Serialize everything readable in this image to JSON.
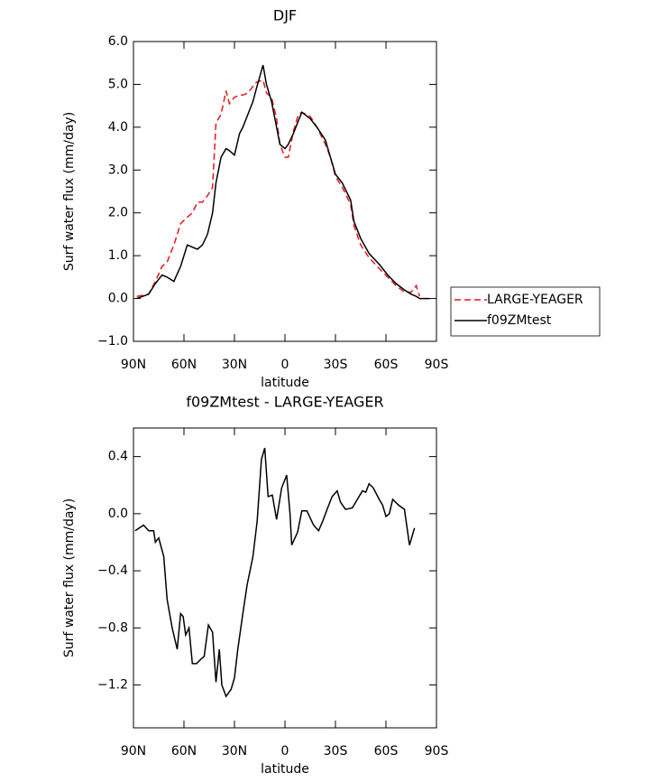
{
  "chart_data": [
    {
      "type": "line",
      "title": "DJF",
      "xlabel": "latitude",
      "ylabel": "Surf water flux (mm/day)",
      "x": [
        88,
        81,
        77,
        73,
        70,
        66,
        62,
        58,
        55,
        52,
        49,
        46,
        43,
        41,
        38,
        35,
        33,
        30,
        27,
        25,
        22,
        19,
        17,
        13,
        11,
        8,
        5,
        3,
        0,
        -2,
        -5,
        -8,
        -10,
        -15,
        -19,
        -24,
        -27,
        -30,
        -34,
        -39,
        -41,
        -45,
        -50,
        -56,
        -61,
        -66,
        -71,
        -75,
        -78,
        -80,
        -86
      ],
      "series": [
        {
          "name": "LARGE-YEAGER",
          "color": "#e8141c",
          "dash": "dashed",
          "values": [
            0.05,
            0.1,
            0.4,
            0.75,
            0.85,
            1.25,
            1.75,
            1.9,
            2.0,
            2.25,
            2.25,
            2.4,
            2.6,
            4.1,
            4.3,
            4.85,
            4.55,
            4.7,
            4.75,
            4.75,
            4.8,
            4.95,
            5.05,
            5.1,
            4.8,
            4.7,
            4.2,
            3.6,
            3.3,
            3.3,
            3.9,
            4.3,
            4.35,
            4.25,
            4.0,
            3.6,
            3.3,
            2.85,
            2.6,
            2.2,
            1.7,
            1.25,
            0.95,
            0.7,
            0.5,
            0.3,
            0.15,
            0.15,
            0.3,
            0.05,
            null
          ]
        },
        {
          "name": "f09ZMtest",
          "color": "#000000",
          "dash": "solid",
          "values": [
            0.0,
            0.1,
            0.35,
            0.55,
            0.5,
            0.4,
            0.75,
            1.25,
            1.2,
            1.15,
            1.25,
            1.5,
            2.0,
            2.7,
            3.3,
            3.5,
            3.45,
            3.35,
            3.85,
            4.0,
            4.3,
            4.6,
            4.9,
            5.45,
            5.0,
            4.6,
            4.0,
            3.6,
            3.5,
            3.6,
            3.85,
            4.15,
            4.35,
            4.2,
            4.0,
            3.7,
            3.3,
            2.9,
            2.7,
            2.3,
            1.8,
            1.4,
            1.05,
            0.8,
            0.55,
            0.35,
            0.2,
            0.1,
            0.05,
            0.0,
            0.0
          ]
        }
      ],
      "xlim": [
        90,
        -90
      ],
      "xticks": [
        {
          "value": 90,
          "label": "90N"
        },
        {
          "value": 60,
          "label": "60N"
        },
        {
          "value": 30,
          "label": "30N"
        },
        0,
        {
          "value": -30,
          "label": "30S"
        },
        {
          "value": -60,
          "label": "60S"
        },
        {
          "value": -90,
          "label": "90S"
        }
      ],
      "ylim": [
        -1,
        6
      ],
      "yticks": [
        {
          "value": 6,
          "label": "6.0"
        },
        {
          "value": 5,
          "label": "5.0"
        },
        {
          "value": 4,
          "label": "4.0"
        },
        {
          "value": 3,
          "label": "3.0"
        },
        {
          "value": 2,
          "label": "2.0"
        },
        {
          "value": 1,
          "label": "1.0"
        },
        {
          "value": 0,
          "label": "0.0"
        },
        {
          "value": -1,
          "label": "−1.0"
        }
      ],
      "legend": "right"
    },
    {
      "type": "line",
      "title": "f09ZMtest - LARGE-YEAGER",
      "xlabel": "latitude",
      "ylabel": "Surf water flux (mm/day)",
      "x": [
        89,
        84,
        81,
        78,
        77,
        75,
        72,
        70,
        67,
        64,
        62,
        60.5,
        59,
        57,
        55,
        52.5,
        50,
        48,
        45.5,
        43,
        41,
        39,
        37.5,
        35,
        32,
        30,
        28,
        25,
        22.5,
        19,
        16.5,
        14,
        12,
        10,
        7.5,
        5,
        2,
        -1,
        -3,
        -4,
        -7.5,
        -10,
        -13,
        -17,
        -20,
        -22.5,
        -25,
        -28,
        -31,
        -33,
        -36,
        -40,
        -43,
        -46,
        -48,
        -50,
        -52.5,
        -56,
        -58,
        -60,
        -62,
        -64,
        -67.5,
        -71,
        -74,
        -77
      ],
      "series": [
        {
          "name": "f09ZMtest - LARGE-YEAGER",
          "color": "#000000",
          "dash": "solid",
          "values": [
            -0.12,
            -0.08,
            -0.12,
            -0.12,
            -0.2,
            -0.17,
            -0.3,
            -0.6,
            -0.8,
            -0.95,
            -0.7,
            -0.72,
            -0.85,
            -0.8,
            -1.05,
            -1.05,
            -1.02,
            -1.0,
            -0.78,
            -0.83,
            -1.18,
            -0.95,
            -1.2,
            -1.28,
            -1.23,
            -1.15,
            -0.95,
            -0.7,
            -0.5,
            -0.3,
            -0.05,
            0.38,
            0.46,
            0.12,
            0.13,
            -0.04,
            0.18,
            0.27,
            0.0,
            -0.22,
            -0.13,
            0.02,
            0.02,
            -0.08,
            -0.12,
            -0.05,
            0.03,
            0.12,
            0.16,
            0.08,
            0.03,
            0.04,
            0.1,
            0.16,
            0.15,
            0.21,
            0.18,
            0.1,
            0.06,
            -0.02,
            0.0,
            0.1,
            0.06,
            0.03,
            -0.22,
            -0.1
          ]
        }
      ],
      "xlim": [
        90,
        -90
      ],
      "xticks": [
        {
          "value": 90,
          "label": "90N"
        },
        {
          "value": 60,
          "label": "60N"
        },
        {
          "value": 30,
          "label": "30N"
        },
        0,
        {
          "value": -30,
          "label": "30S"
        },
        {
          "value": -60,
          "label": "60S"
        },
        {
          "value": -90,
          "label": "90S"
        }
      ],
      "ylim": [
        -1.5,
        0.6
      ],
      "yticks": [
        {
          "value": 0.4,
          "label": "0.4"
        },
        {
          "value": 0,
          "label": "0.0"
        },
        {
          "value": -0.4,
          "label": "−0.4"
        },
        {
          "value": -0.8,
          "label": "−0.8"
        },
        {
          "value": -1.2,
          "label": "−1.2"
        }
      ],
      "legend": "none"
    }
  ]
}
